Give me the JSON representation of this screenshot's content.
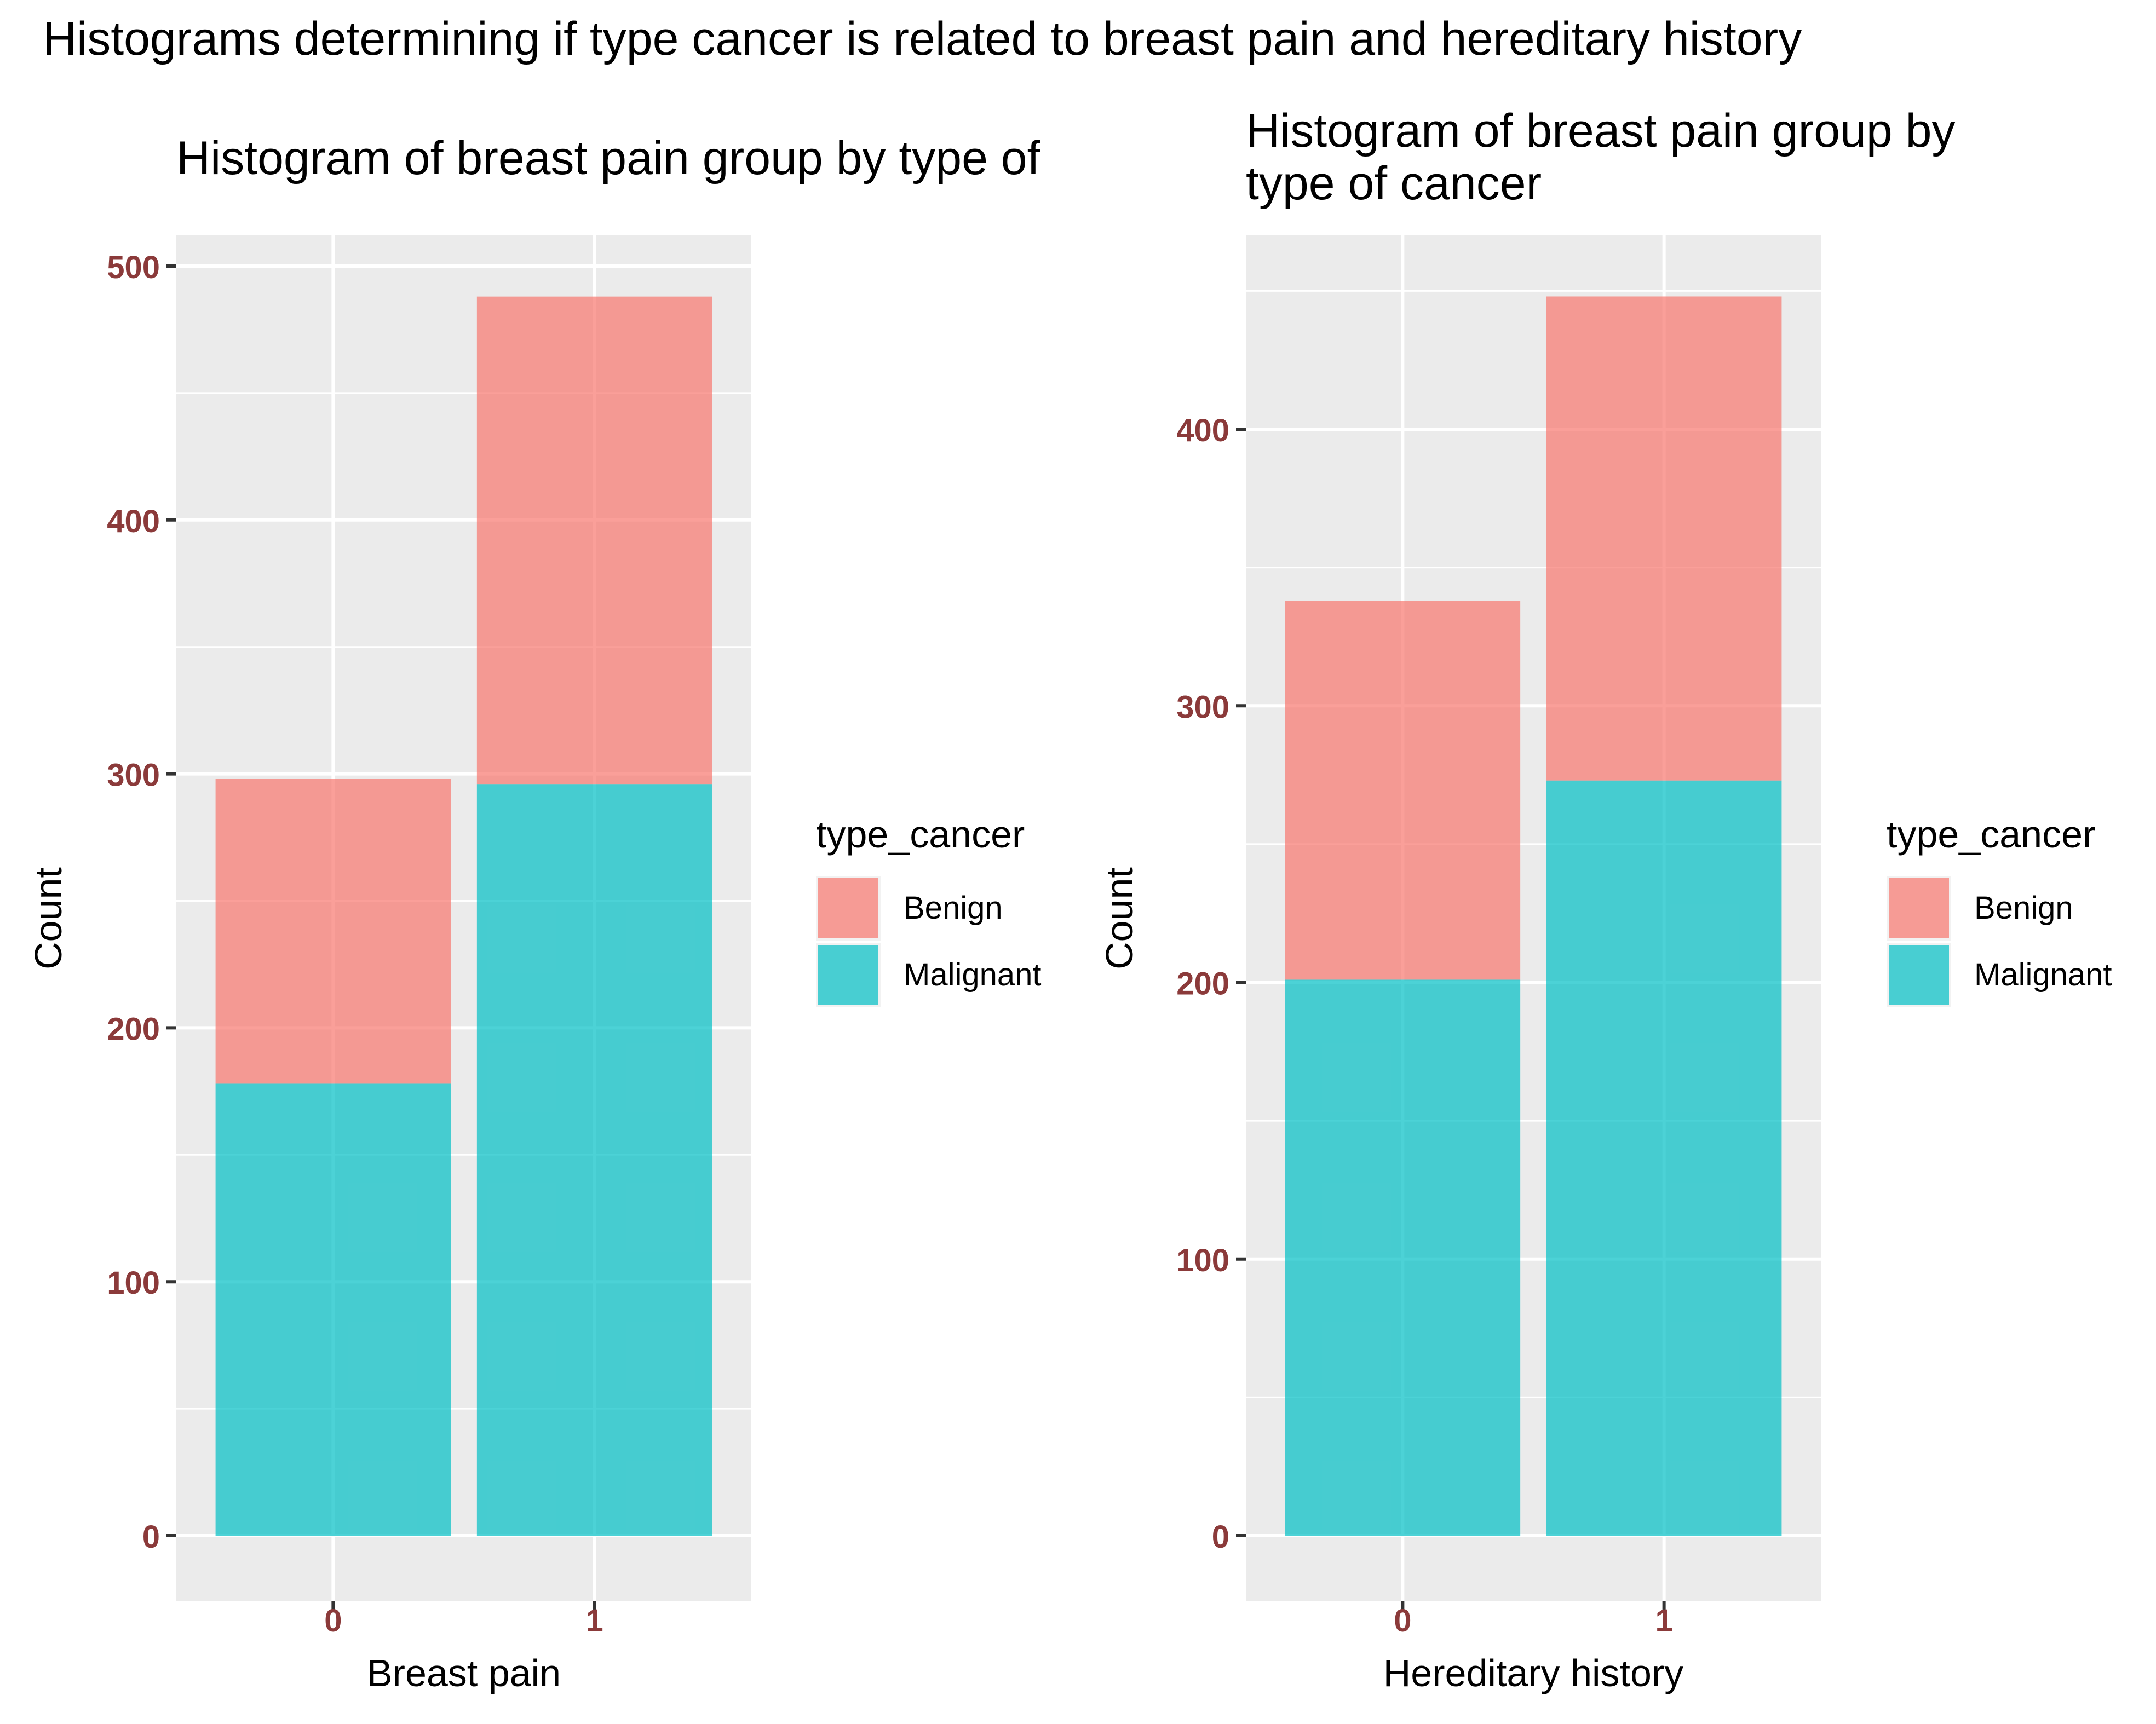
{
  "title": "Histograms determining if type cancer is related to breast pain and hereditary history",
  "colors": {
    "benign": "#F8766D",
    "malignant": "#00BFC4",
    "panel_bg": "#EBEBEB",
    "grid": "#FFFFFF",
    "tick_label": "#8B3A3A"
  },
  "chart_data": [
    {
      "type": "bar",
      "stacked": true,
      "title": "Histogram of breast pain group by type of",
      "xlabel": "Breast pain",
      "ylabel": "Count",
      "categories": [
        "0",
        "1"
      ],
      "series": [
        {
          "name": "Benign",
          "values": [
            120,
            192
          ]
        },
        {
          "name": "Malignant",
          "values": [
            178,
            296
          ]
        }
      ],
      "ylim": [
        0,
        500
      ],
      "yticks": [
        0,
        100,
        200,
        300,
        400,
        500
      ],
      "grid": true,
      "legend": {
        "title": "type_cancer",
        "position": "right",
        "entries": [
          "Benign",
          "Malignant"
        ]
      }
    },
    {
      "type": "bar",
      "stacked": true,
      "title": [
        "Histogram of breast pain group by",
        " type of cancer"
      ],
      "xlabel": "Hereditary history",
      "ylabel": "Count",
      "categories": [
        "0",
        "1"
      ],
      "series": [
        {
          "name": "Benign",
          "values": [
            137,
            175
          ]
        },
        {
          "name": "Malignant",
          "values": [
            201,
            273
          ]
        }
      ],
      "ylim": [
        0,
        400
      ],
      "yticks": [
        0,
        100,
        200,
        300,
        400
      ],
      "grid": true,
      "legend": {
        "title": "type_cancer",
        "position": "right",
        "entries": [
          "Benign",
          "Malignant"
        ]
      }
    }
  ]
}
